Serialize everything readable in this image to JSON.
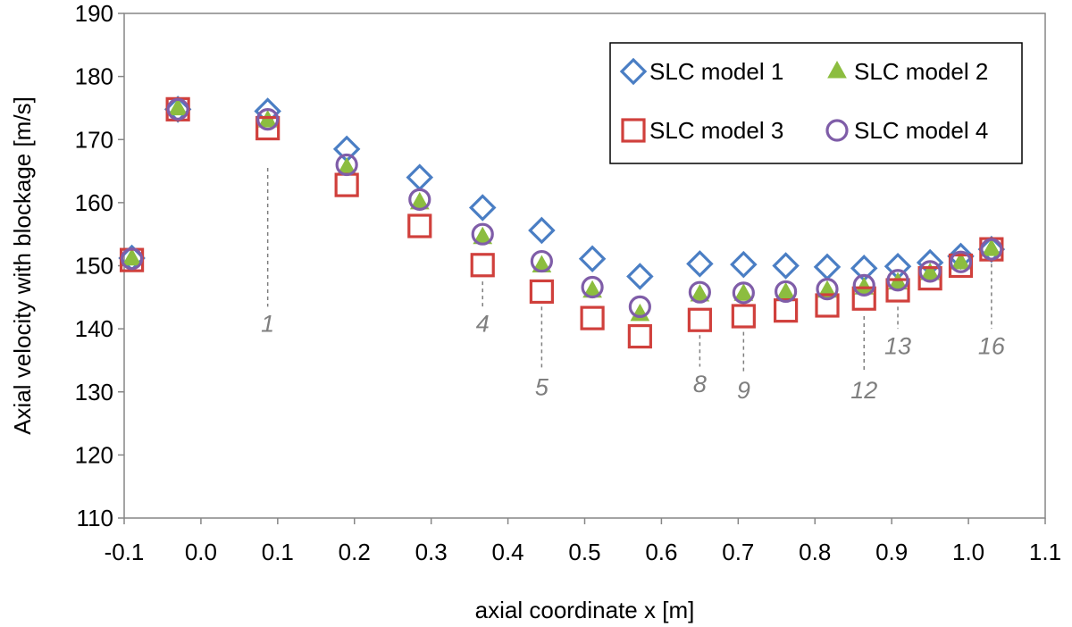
{
  "chart_data": {
    "type": "scatter",
    "title": "",
    "xlabel": "axial coordinate x [m]",
    "ylabel": "Axial velocity with blockage [m/s]",
    "xlim": [
      -0.1,
      1.1
    ],
    "ylim": [
      110,
      190
    ],
    "xticks": [
      -0.1,
      0.0,
      0.1,
      0.2,
      0.3,
      0.4,
      0.5,
      0.6,
      0.7,
      0.8,
      0.9,
      1.0,
      1.1
    ],
    "xtick_labels": [
      "-0.1",
      "0.0",
      "0.1",
      "0.2",
      "0.3",
      "0.4",
      "0.5",
      "0.6",
      "0.7",
      "0.8",
      "0.9",
      "1.0",
      "1.1"
    ],
    "yticks": [
      110,
      120,
      130,
      140,
      150,
      160,
      170,
      180,
      190
    ],
    "ytick_labels": [
      "110",
      "120",
      "130",
      "140",
      "150",
      "160",
      "170",
      "180",
      "190"
    ],
    "grid": false,
    "legend_position": "top-right",
    "x": [
      -0.09,
      -0.03,
      0.087,
      0.19,
      0.285,
      0.367,
      0.444,
      0.51,
      0.572,
      0.65,
      0.707,
      0.762,
      0.816,
      0.864,
      0.908,
      0.95,
      0.99,
      1.03
    ],
    "series": [
      {
        "name": "SLC model 1",
        "marker": "diamond",
        "color": "#4a7ec4",
        "values": [
          151.2,
          174.8,
          174.5,
          168.5,
          164.0,
          159.2,
          155.6,
          151.1,
          148.3,
          150.3,
          150.2,
          150.0,
          149.8,
          149.6,
          149.9,
          150.5,
          151.5,
          152.6
        ]
      },
      {
        "name": "SLC model 2",
        "marker": "triangle",
        "color": "#8cbd3f",
        "values": [
          151.1,
          174.9,
          173.0,
          165.5,
          160.0,
          154.5,
          150.0,
          146.0,
          142.3,
          145.4,
          145.5,
          145.7,
          146.0,
          146.5,
          147.3,
          148.8,
          150.5,
          152.6
        ]
      },
      {
        "name": "SLC model 3",
        "marker": "square",
        "color": "#d0403c",
        "values": [
          150.9,
          174.8,
          171.8,
          162.8,
          156.3,
          150.1,
          145.9,
          141.7,
          138.8,
          141.4,
          142.0,
          142.9,
          143.7,
          144.8,
          146.1,
          148.0,
          150.0,
          152.6
        ]
      },
      {
        "name": "SLC model 4",
        "marker": "circle",
        "color": "#7f5da8",
        "values": [
          151.1,
          174.8,
          173.2,
          166.0,
          160.5,
          155.0,
          150.7,
          146.6,
          143.5,
          145.8,
          145.7,
          145.9,
          146.3,
          146.9,
          147.7,
          149.1,
          150.6,
          152.6
        ]
      }
    ],
    "annotations": [
      {
        "label": "1",
        "x": 0.087,
        "line_from": 165.5,
        "line_to": 143.5,
        "text_y": 139.5
      },
      {
        "label": "4",
        "x": 0.367,
        "line_from": 147.5,
        "line_to": 143.5,
        "text_y": 139.5
      },
      {
        "label": "5",
        "x": 0.444,
        "line_from": 143.5,
        "line_to": 133.5,
        "text_y": 129.5
      },
      {
        "label": "8",
        "x": 0.65,
        "line_from": 139.0,
        "line_to": 134.0,
        "text_y": 130.0
      },
      {
        "label": "9",
        "x": 0.707,
        "line_from": 139.5,
        "line_to": 133.0,
        "text_y": 129.0
      },
      {
        "label": "12",
        "x": 0.864,
        "line_from": 142.0,
        "line_to": 133.0,
        "text_y": 129.0
      },
      {
        "label": "13",
        "x": 0.908,
        "line_from": 143.5,
        "line_to": 140.0,
        "text_y": 136.0
      },
      {
        "label": "16",
        "x": 1.03,
        "line_from": 150.3,
        "line_to": 140.0,
        "text_y": 136.0
      }
    ]
  }
}
